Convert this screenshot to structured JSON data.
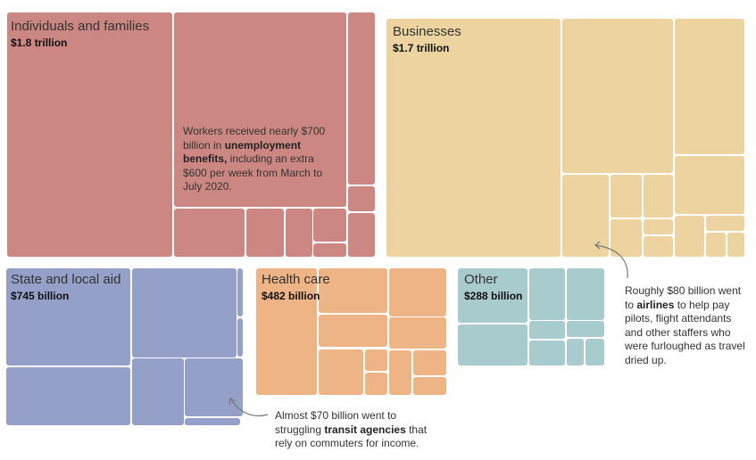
{
  "chart_data": {
    "type": "treemap",
    "categories": [
      {
        "name": "Individuals and families",
        "total": "$1.8 trillion",
        "color": "#cd8783"
      },
      {
        "name": "Businesses",
        "total": "$1.7 trillion",
        "color": "#edd39f"
      },
      {
        "name": "State and local aid",
        "total": "$745 billion",
        "color": "#94a0c8"
      },
      {
        "name": "Health care",
        "total": "$482 billion",
        "color": "#eeb486"
      },
      {
        "name": "Other",
        "total": "$288 billion",
        "color": "#a8cbce"
      }
    ],
    "annotations": {
      "unemployment": {
        "pre": "Workers received nearly $700 billion in ",
        "bold": "unemployment benefits,",
        "post": " including an extra $600 per week from March to July 2020."
      },
      "airlines": {
        "pre": "Roughly $80 billion went to ",
        "bold": "airlines",
        "post": " to help pay pilots, flight attendants and other staffers who were furloughed as travel dried up."
      },
      "transit": {
        "pre": "Almost $70 billion went to struggling ",
        "bold": "transit agencies",
        "post": " that rely on commuters for income."
      }
    }
  }
}
